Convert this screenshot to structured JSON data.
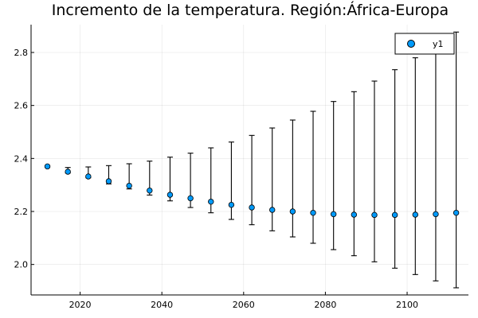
{
  "chart_data": {
    "type": "scatter",
    "title": "Incremento de la temperatura. Región:África-Europa",
    "xlabel": "",
    "ylabel": "",
    "xlim": [
      2008,
      2115
    ],
    "ylim": [
      1.885,
      2.905
    ],
    "xticks": [
      2020,
      2040,
      2060,
      2080,
      2100
    ],
    "yticks": [
      2.0,
      2.2,
      2.4,
      2.6,
      2.8
    ],
    "x_tick_labels": [
      "2020",
      "2040",
      "2060",
      "2080",
      "2100"
    ],
    "y_tick_labels": [
      "2.0",
      "2.2",
      "2.4",
      "2.6",
      "2.8"
    ],
    "grid": true,
    "legend": "top-right",
    "series": [
      {
        "name": "y1",
        "color": "#009AFA",
        "x": [
          2012,
          2017,
          2022,
          2027,
          2032,
          2037,
          2042,
          2047,
          2052,
          2057,
          2062,
          2067,
          2072,
          2077,
          2082,
          2087,
          2092,
          2097,
          2102,
          2107,
          2112
        ],
        "y": [
          2.37,
          2.35,
          2.332,
          2.314,
          2.297,
          2.279,
          2.263,
          2.25,
          2.237,
          2.225,
          2.215,
          2.206,
          2.2,
          2.195,
          2.19,
          2.188,
          2.187,
          2.187,
          2.188,
          2.19,
          2.195
        ],
        "err_low": [
          2.367,
          2.345,
          2.327,
          2.304,
          2.285,
          2.262,
          2.24,
          2.215,
          2.195,
          2.17,
          2.15,
          2.127,
          2.104,
          2.08,
          2.056,
          2.033,
          2.01,
          1.986,
          1.962,
          1.938,
          1.912
        ],
        "err_high": [
          2.373,
          2.366,
          2.368,
          2.373,
          2.38,
          2.39,
          2.405,
          2.42,
          2.44,
          2.462,
          2.487,
          2.515,
          2.545,
          2.578,
          2.615,
          2.652,
          2.692,
          2.735,
          2.78,
          2.828,
          2.877
        ]
      }
    ]
  }
}
